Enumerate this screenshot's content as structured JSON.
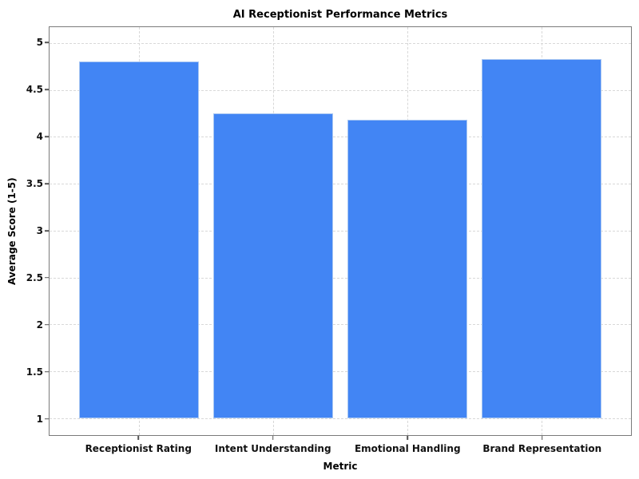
{
  "chart_data": {
    "type": "bar",
    "title": "AI Receptionist Performance Metrics",
    "xlabel": "Metric",
    "ylabel": "Average Score (1-5)",
    "categories": [
      "Receptionist Rating",
      "Intent Understanding",
      "Emotional Handling",
      "Brand Representation"
    ],
    "values": [
      4.8,
      4.25,
      4.18,
      4.83
    ],
    "bar_bottom": 1,
    "ylim": [
      0.82,
      5.17
    ],
    "yticks": [
      1,
      1.5,
      2,
      2.5,
      3,
      3.5,
      4,
      4.5,
      5
    ],
    "grid": "both-dashed",
    "legend": "none",
    "colors": {
      "bar_fill": "#4285F4",
      "bar_edge": "#A9C7F2",
      "gridline": "#D8D8D8",
      "spine": "#7A7A7A",
      "text": "#111111",
      "background": "#FFFFFF"
    }
  }
}
